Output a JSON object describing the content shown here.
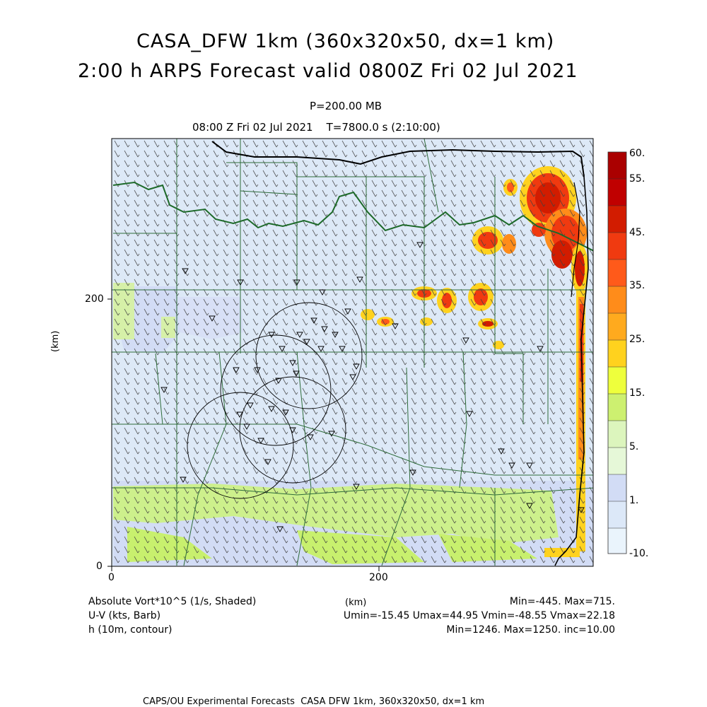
{
  "title_line1": "CASA_DFW 1km (360x320x50, dx=1 km)",
  "title_line2": "2:00 h ARPS Forecast valid 0800Z Fri 02 Jul 2021",
  "level_text": "P=200.00 MB",
  "time_text": "08:00 Z Fri 02 Jul 2021    T=7800.0 s (2:10:00)",
  "axes": {
    "x_ticks": [
      "0",
      "200"
    ],
    "y_ticks": [
      "0",
      "200"
    ],
    "x_label": "(km)",
    "y_label": "(km)"
  },
  "colorbar": {
    "labels": [
      "60.",
      "55.",
      "45.",
      "35.",
      "25.",
      "15.",
      "5.",
      "1.",
      "-10."
    ],
    "colors": [
      "#aa0000",
      "#d21c00",
      "#f03a10",
      "#ff5a1a",
      "#ff8c1a",
      "#ffd21e",
      "#eeff3c",
      "#c8f06e",
      "#dcf5bd",
      "#d2dcf5",
      "#dce8f8",
      "#e6f2fa",
      "#f0f8ff"
    ]
  },
  "info": {
    "var1": "Absolute Vort*10^5 (1/s, Shaded)",
    "var2": "U-V (kts, Barb)",
    "var3": "h (10m, contour)",
    "stat1": "Min=-445. Max=715.",
    "stat2": "Umin=-15.45 Umax=44.95 Vmin=-48.55 Vmax=22.18",
    "stat3": "Min=1246. Max=1250. inc=10.00"
  },
  "footer": "CAPS/OU Experimental Forecasts  CASA DFW 1km, 360x320x50, dx=1 km"
}
